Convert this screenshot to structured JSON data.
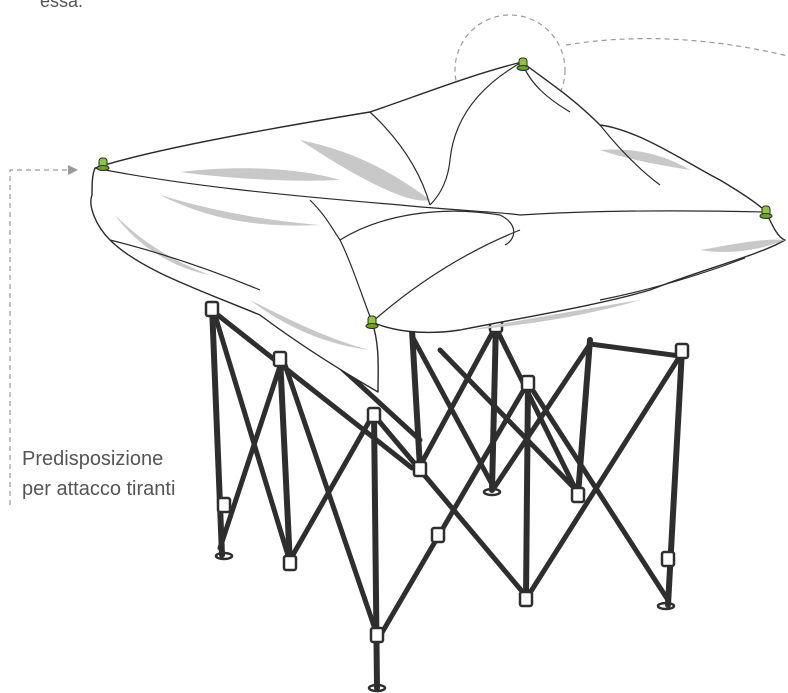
{
  "top_text_fragment": "essa.",
  "callout": {
    "line1": "Predisposizione",
    "line2": "per attacco tiranti"
  },
  "colors": {
    "canopy_fill": "#ffffff",
    "canopy_shadow": "#c8c8c8",
    "outline": "#2a2a2a",
    "frame": "#3a3a3a",
    "dashed_leader": "#9a9a9a",
    "anchor_green": "#8cc63f"
  },
  "icons": [
    "tie-down-anchor-icon"
  ]
}
